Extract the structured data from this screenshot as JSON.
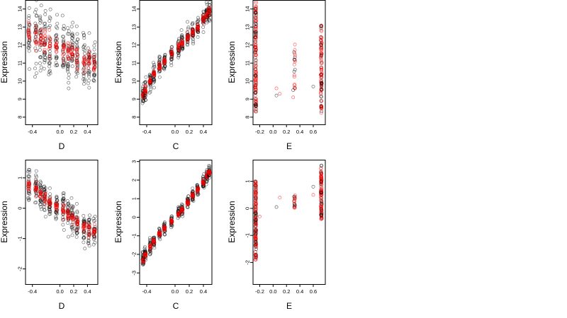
{
  "colors": {
    "series_a": "#000000",
    "series_b": "#ff0000"
  },
  "chart_data": [
    {
      "type": "scatter",
      "xlabel": "D",
      "ylabel": "Expression",
      "xlim": [
        -0.5,
        0.55
      ],
      "ylim": [
        7.6,
        14.5
      ],
      "xticks": [
        -0.4,
        0.0,
        0.2,
        0.4
      ],
      "xticklabels": [
        "-0.4",
        "0.0",
        "0.2",
        "0.4"
      ],
      "yticks": [
        8,
        9,
        10,
        11,
        12,
        13,
        14
      ],
      "yticklabels": [
        "8",
        "9",
        "10",
        "11",
        "12",
        "13",
        "14"
      ],
      "x_groups": [
        -0.45,
        -0.35,
        -0.28,
        -0.22,
        -0.15,
        -0.05,
        0.05,
        0.12,
        0.18,
        0.25,
        0.35,
        0.42,
        0.5
      ],
      "trend": [
        12.6,
        12.45,
        12.3,
        12.2,
        12.05,
        11.85,
        11.7,
        11.6,
        11.5,
        11.35,
        11.2,
        11.05,
        10.95
      ],
      "spread": 1.6,
      "jitter": 0.012
    },
    {
      "type": "scatter",
      "xlabel": "C",
      "ylabel": "Expression",
      "xlim": [
        -0.5,
        0.52
      ],
      "ylim": [
        7.6,
        14.5
      ],
      "xticks": [
        -0.4,
        0.0,
        0.2,
        0.4
      ],
      "xticklabels": [
        "-0.4",
        "0.0",
        "0.2",
        "0.4"
      ],
      "yticks": [
        8,
        9,
        10,
        11,
        12,
        13,
        14
      ],
      "yticklabels": [
        "8",
        "9",
        "10",
        "11",
        "12",
        "13",
        "14"
      ],
      "x_groups": [
        -0.45,
        -0.42,
        -0.35,
        -0.3,
        -0.22,
        -0.15,
        -0.05,
        0.05,
        0.1,
        0.18,
        0.25,
        0.32,
        0.4,
        0.45,
        0.48
      ],
      "trend": [
        9.2,
        9.5,
        10.0,
        10.4,
        10.8,
        11.1,
        11.5,
        11.9,
        12.1,
        12.4,
        12.7,
        13.0,
        13.4,
        13.6,
        13.9
      ],
      "spread": 0.55,
      "jitter": 0.01
    },
    {
      "type": "scatter",
      "xlabel": "E",
      "ylabel": "Expression",
      "xlim": [
        -0.3,
        0.78
      ],
      "ylim": [
        7.6,
        14.5
      ],
      "xticks": [
        -0.2,
        0.0,
        0.2,
        0.4,
        0.6
      ],
      "xticklabels": [
        "-0.2",
        "0.0",
        "0.2",
        "0.4",
        "0.6"
      ],
      "yticks": [
        8,
        9,
        10,
        11,
        12,
        13,
        14
      ],
      "yticklabels": [
        "8",
        "9",
        "10",
        "11",
        "12",
        "13",
        "14"
      ],
      "column_x": [
        -0.26,
        0.32,
        0.72
      ],
      "column_ranges": [
        [
          8.2,
          14.4
        ],
        [
          9.4,
          12.3
        ],
        [
          8.2,
          13.1
        ]
      ],
      "column_counts": [
        160,
        20,
        110
      ],
      "stray_points": [
        [
          0.05,
          9.6
        ],
        [
          0.05,
          9.2
        ],
        [
          0.1,
          9.3
        ],
        [
          0.3,
          9.5
        ],
        [
          0.3,
          9.1
        ],
        [
          0.6,
          9.7
        ]
      ],
      "jitter": 0.008
    },
    {
      "type": "scatter",
      "xlabel": "D",
      "ylabel": "Expression",
      "xlim": [
        -0.5,
        0.55
      ],
      "ylim": [
        -2.5,
        1.6
      ],
      "xticks": [
        -0.4,
        0.0,
        0.2,
        0.4
      ],
      "xticklabels": [
        "-0.4",
        "0.0",
        "0.2",
        "0.4"
      ],
      "yticks": [
        -2,
        -1,
        0,
        1
      ],
      "yticklabels": [
        "-2",
        "-1",
        "0",
        "1"
      ],
      "x_groups": [
        -0.45,
        -0.35,
        -0.28,
        -0.22,
        -0.15,
        -0.05,
        0.05,
        0.12,
        0.18,
        0.25,
        0.35,
        0.42,
        0.5
      ],
      "trend": [
        0.8,
        0.65,
        0.5,
        0.35,
        0.2,
        0.05,
        -0.1,
        -0.2,
        -0.3,
        -0.45,
        -0.6,
        -0.7,
        -0.8
      ],
      "spread": 0.55,
      "jitter": 0.012
    },
    {
      "type": "scatter",
      "xlabel": "C",
      "ylabel": "Expression",
      "xlim": [
        -0.5,
        0.52
      ],
      "ylim": [
        -3.6,
        3.1
      ],
      "xticks": [
        -0.4,
        0.0,
        0.2,
        0.4
      ],
      "xticklabels": [
        "-0.4",
        "0.0",
        "0.2",
        "0.4"
      ],
      "yticks": [
        -3,
        -2,
        -1,
        0,
        1,
        2,
        3
      ],
      "yticklabels": [
        "-3",
        "-2",
        "-1",
        "0",
        "1",
        "2",
        "3"
      ],
      "x_groups": [
        -0.45,
        -0.42,
        -0.35,
        -0.3,
        -0.22,
        -0.15,
        -0.05,
        0.05,
        0.1,
        0.18,
        0.25,
        0.32,
        0.4,
        0.45,
        0.48
      ],
      "trend": [
        -2.3,
        -2.0,
        -1.6,
        -1.3,
        -0.9,
        -0.6,
        -0.2,
        0.2,
        0.4,
        0.8,
        1.2,
        1.5,
        1.9,
        2.2,
        2.4
      ],
      "spread": 0.35,
      "jitter": 0.01
    },
    {
      "type": "scatter",
      "xlabel": "E",
      "ylabel": "Expression",
      "xlim": [
        -0.3,
        0.78
      ],
      "ylim": [
        -2.8,
        1.8
      ],
      "xticks": [
        -0.2,
        0.0,
        0.2,
        0.4,
        0.6
      ],
      "xticklabels": [
        "-0.2",
        "0.0",
        "0.2",
        "0.4",
        "0.6"
      ],
      "yticks": [
        -2,
        -1,
        0,
        1
      ],
      "yticklabels": [
        "-2",
        "-1",
        "0",
        "1"
      ],
      "column_x": [
        -0.26,
        0.32,
        0.72
      ],
      "column_ranges": [
        [
          -1.9,
          1.0
        ],
        [
          0.0,
          0.5
        ],
        [
          -0.4,
          1.6
        ]
      ],
      "column_counts": [
        160,
        20,
        110
      ],
      "stray_points": [
        [
          -0.2,
          -0.3
        ],
        [
          0.05,
          0.05
        ],
        [
          0.1,
          0.4
        ],
        [
          0.6,
          0.8
        ],
        [
          0.6,
          0.5
        ]
      ],
      "jitter": 0.008
    }
  ]
}
